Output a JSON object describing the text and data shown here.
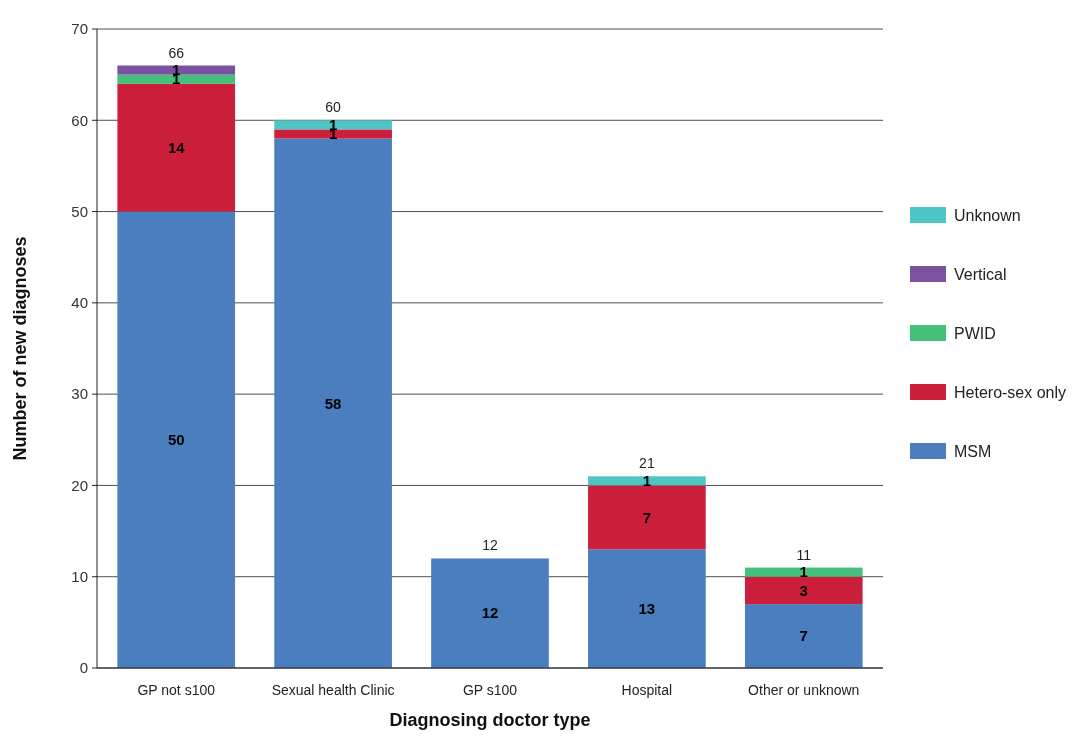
{
  "chart_data": {
    "type": "bar",
    "stacked": true,
    "xlabel": "Diagnosing doctor type",
    "ylabel": "Number of new diagnoses",
    "categories": [
      "GP not s100",
      "Sexual health Clinic",
      "GP s100",
      "Hospital",
      "Other or unknown"
    ],
    "series": [
      {
        "name": "MSM",
        "color": "#4a7ebf",
        "values": [
          50,
          58,
          12,
          13,
          7
        ],
        "value_labels": [
          "50",
          "58",
          "12",
          "13",
          "7"
        ]
      },
      {
        "name": "Hetero-sex only",
        "color": "#cc1f3c",
        "values": [
          14,
          1,
          0,
          7,
          3
        ],
        "value_labels": [
          "14",
          "1",
          null,
          "7",
          "3"
        ]
      },
      {
        "name": "PWID",
        "color": "#45bf7c",
        "values": [
          1,
          0,
          0,
          0,
          1
        ],
        "value_labels": [
          "1",
          null,
          null,
          null,
          "1"
        ]
      },
      {
        "name": "Vertical",
        "color": "#7b52a0",
        "values": [
          1,
          0,
          0,
          0,
          0
        ],
        "value_labels": [
          "1",
          null,
          null,
          null,
          null
        ]
      },
      {
        "name": "Unknown",
        "color": "#4fc4c4",
        "values": [
          0,
          1,
          0,
          1,
          0
        ],
        "value_labels": [
          null,
          "1",
          null,
          "1",
          null
        ]
      }
    ],
    "totals": [
      "66",
      "60",
      "12",
      "21",
      "11"
    ],
    "ylim": [
      0,
      70
    ],
    "yticks": [
      0,
      10,
      20,
      30,
      40,
      50,
      60,
      70
    ],
    "grid": "y",
    "legend": "right"
  }
}
